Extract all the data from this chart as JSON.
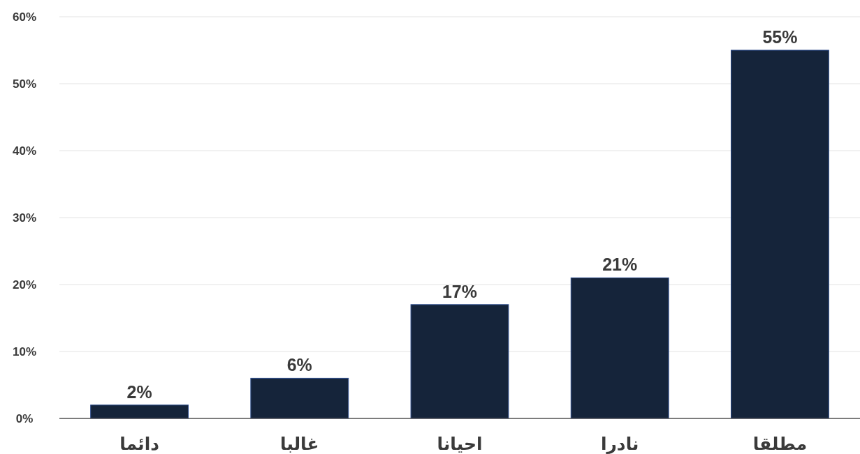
{
  "chart_data": {
    "type": "bar",
    "categories": [
      "دائما",
      "غالبا",
      "احيانا",
      "نادرا",
      "مطلقا"
    ],
    "values": [
      2,
      6,
      17,
      21,
      55
    ],
    "color": "#15243a",
    "value_labels": [
      "2%",
      "6%",
      "17%",
      "21%",
      "55%"
    ],
    "ylim": [
      0,
      60
    ],
    "yticks": [
      {
        "value": 0,
        "label": "0%"
      },
      {
        "value": 10,
        "label": "10%"
      },
      {
        "value": 20,
        "label": "20%"
      },
      {
        "value": 30,
        "label": "30%"
      },
      {
        "value": 40,
        "label": "40%"
      },
      {
        "value": 50,
        "label": "50%"
      },
      {
        "value": 60,
        "label": "60%"
      }
    ],
    "grid": "y"
  }
}
